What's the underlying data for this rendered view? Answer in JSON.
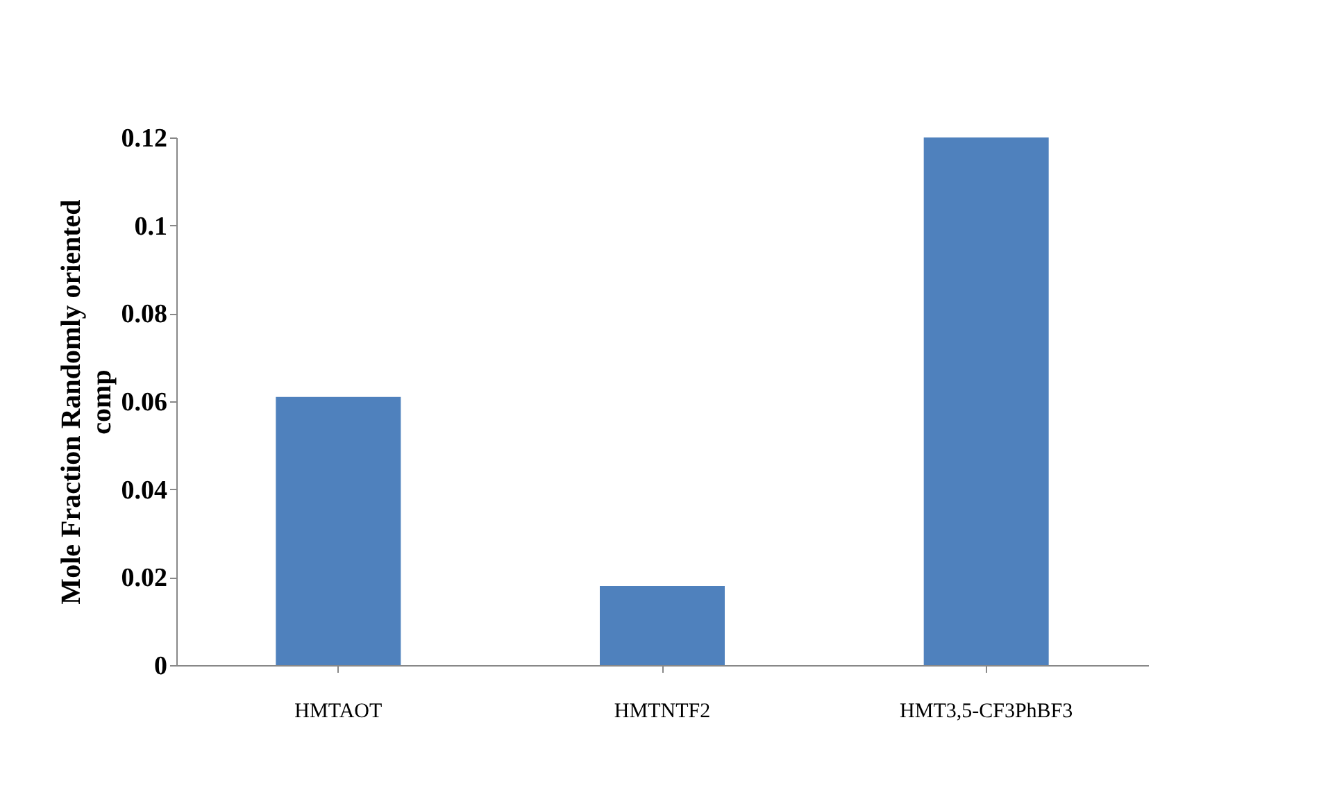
{
  "chart_data": {
    "type": "bar",
    "ylabel": "Mole  Fraction Randomly oriented comp",
    "categories": [
      "HMTAOT",
      "HMTNTF2",
      "HMT3,5-CF3PhBF3"
    ],
    "values": [
      0.061,
      0.018,
      0.12
    ],
    "color": "#4f81bd",
    "ylim": [
      0,
      0.12
    ],
    "yticks": [
      0,
      0.02,
      0.04,
      0.06,
      0.08,
      0.1,
      0.12
    ],
    "grid": false
  }
}
